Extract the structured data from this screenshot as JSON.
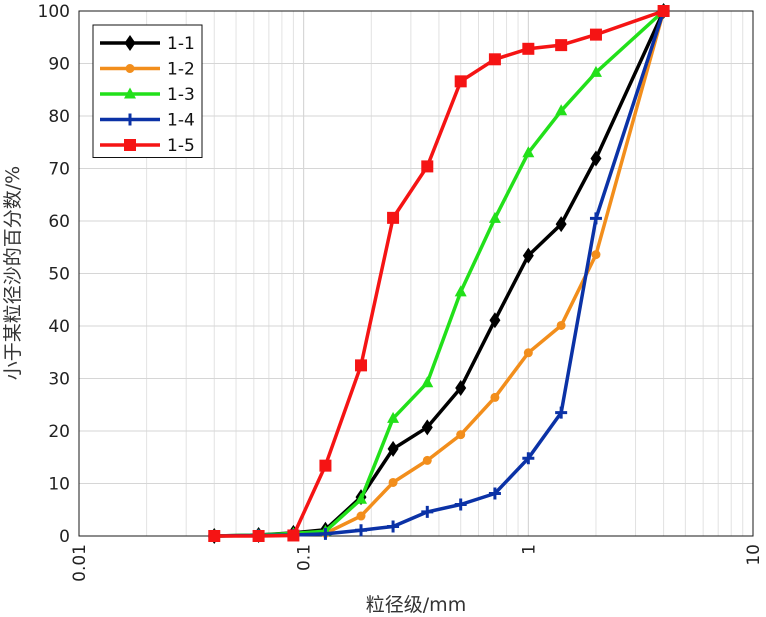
{
  "chart_data": {
    "type": "line",
    "xscale": "log",
    "xlim": [
      0.01,
      10
    ],
    "ylim": [
      0,
      100
    ],
    "xlabel": "粒径级/mm",
    "ylabel": "小于某粒径沙的百分数/%",
    "x_tick_labels": [
      "0.01",
      "0.1",
      "1",
      "10"
    ],
    "x_tick_values": [
      0.01,
      0.1,
      1,
      10
    ],
    "y_tick_values": [
      0,
      10,
      20,
      30,
      40,
      50,
      60,
      70,
      80,
      90,
      100
    ],
    "y_tick_labels": [
      "0",
      "10",
      "20",
      "30",
      "40",
      "50",
      "60",
      "70",
      "80",
      "90",
      "100"
    ],
    "grid": true,
    "legend_position": "top-left",
    "x": [
      0.04,
      0.063,
      0.09,
      0.125,
      0.18,
      0.25,
      0.355,
      0.5,
      0.71,
      1.0,
      1.4,
      2.0,
      4.0
    ],
    "series": [
      {
        "name": "1-1",
        "color": "#000000",
        "marker": "diamond",
        "values": [
          0,
          0.2,
          0.6,
          1.2,
          7.4,
          16.6,
          20.7,
          28.2,
          41.1,
          53.4,
          59.4,
          71.9,
          100
        ]
      },
      {
        "name": "1-2",
        "color": "#f28e1c",
        "marker": "circle",
        "values": [
          0,
          0.1,
          0.3,
          0.5,
          3.8,
          10.2,
          14.4,
          19.3,
          26.4,
          34.9,
          40.1,
          53.6,
          100
        ]
      },
      {
        "name": "1-3",
        "color": "#22e01a",
        "marker": "triangle",
        "values": [
          0,
          0.2,
          0.5,
          0.9,
          7.0,
          22.4,
          29.2,
          46.5,
          60.5,
          73.0,
          81.0,
          88.3,
          100
        ]
      },
      {
        "name": "1-4",
        "color": "#0b32a6",
        "marker": "plus",
        "values": [
          0,
          0.1,
          0.2,
          0.4,
          1.1,
          1.8,
          4.6,
          6.0,
          8.1,
          14.8,
          23.5,
          60.5,
          100
        ]
      },
      {
        "name": "1-5",
        "color": "#f51414",
        "marker": "square",
        "values": [
          0,
          0,
          0.1,
          13.4,
          32.5,
          60.6,
          70.4,
          86.6,
          90.8,
          92.8,
          93.5,
          95.5,
          100
        ]
      }
    ]
  }
}
